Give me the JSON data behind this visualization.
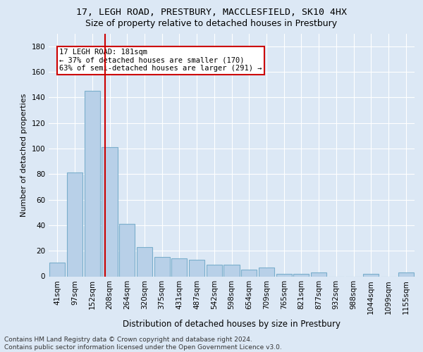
{
  "title1": "17, LEGH ROAD, PRESTBURY, MACCLESFIELD, SK10 4HX",
  "title2": "Size of property relative to detached houses in Prestbury",
  "xlabel": "Distribution of detached houses by size in Prestbury",
  "ylabel": "Number of detached properties",
  "categories": [
    "41sqm",
    "97sqm",
    "152sqm",
    "208sqm",
    "264sqm",
    "320sqm",
    "375sqm",
    "431sqm",
    "487sqm",
    "542sqm",
    "598sqm",
    "654sqm",
    "709sqm",
    "765sqm",
    "821sqm",
    "877sqm",
    "932sqm",
    "988sqm",
    "1044sqm",
    "1099sqm",
    "1155sqm"
  ],
  "values": [
    11,
    81,
    145,
    101,
    41,
    23,
    15,
    14,
    13,
    9,
    9,
    5,
    7,
    2,
    2,
    3,
    0,
    0,
    2,
    0,
    3
  ],
  "bar_color": "#b8d0e8",
  "bar_edgecolor": "#7aaecc",
  "vline_color": "#cc0000",
  "box_edge_color": "#cc0000",
  "vline_x": 2.72,
  "annotation_text_line1": "17 LEGH ROAD: 181sqm",
  "annotation_text_line2": "← 37% of detached houses are smaller (170)",
  "annotation_text_line3": "63% of semi-detached houses are larger (291) →",
  "ylim": [
    0,
    190
  ],
  "yticks": [
    0,
    20,
    40,
    60,
    80,
    100,
    120,
    140,
    160,
    180
  ],
  "footer_line1": "Contains HM Land Registry data © Crown copyright and database right 2024.",
  "footer_line2": "Contains public sector information licensed under the Open Government Licence v3.0.",
  "background_color": "#dce8f5",
  "plot_bg_color": "#dce8f5",
  "grid_color": "#ffffff",
  "title1_fontsize": 9.5,
  "title2_fontsize": 9.0,
  "ylabel_fontsize": 8.0,
  "xlabel_fontsize": 8.5,
  "tick_fontsize": 7.5,
  "footer_fontsize": 6.5
}
